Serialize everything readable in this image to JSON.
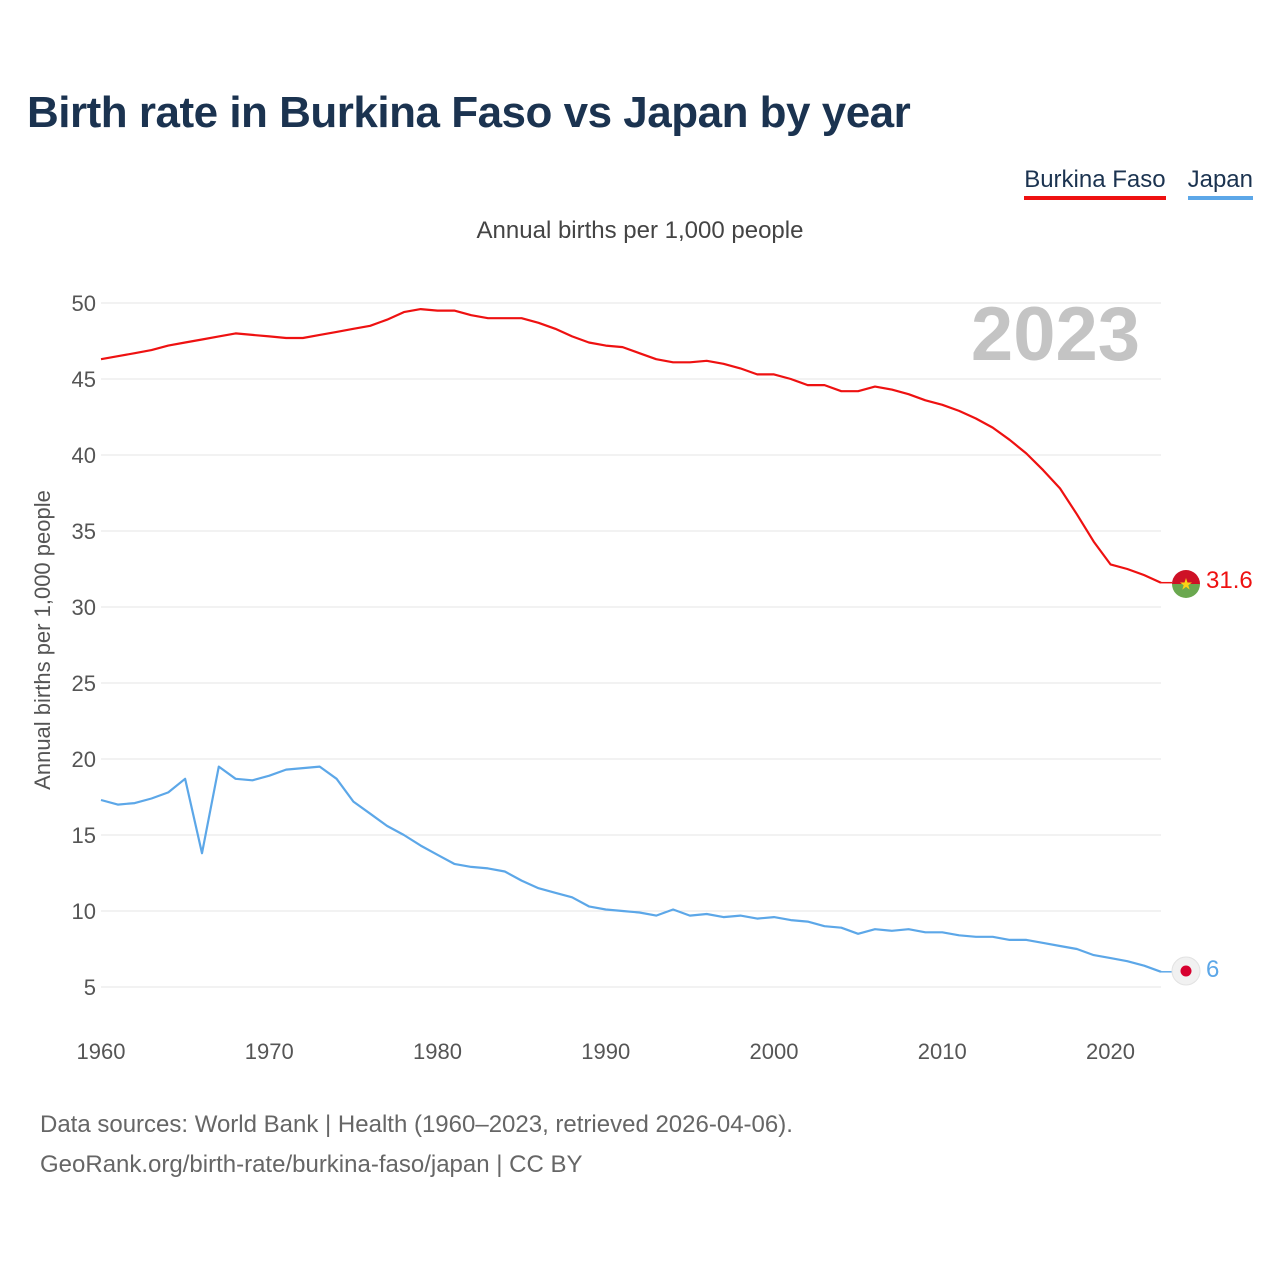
{
  "title": "Birth rate in Burkina Faso vs Japan by year",
  "legend": [
    {
      "name": "Burkina Faso",
      "color": "#ee1111"
    },
    {
      "name": "Japan",
      "color": "#5ca7e8"
    }
  ],
  "subtitle": "Annual births per 1,000 people",
  "year_watermark": "2023",
  "footer": {
    "line1": "Data sources: World Bank | Health (1960–2023, retrieved 2026-04-06).",
    "line2": "GeoRank.org/birth-rate/burkina-faso/japan | CC BY"
  },
  "chart_data": {
    "type": "line",
    "title": "Birth rate in Burkina Faso vs Japan by year",
    "xlabel": "",
    "ylabel": "Annual births per 1,000 people",
    "xlim": [
      1960,
      2023
    ],
    "ylim": [
      3,
      52
    ],
    "xticks": [
      1960,
      1970,
      1980,
      1990,
      2000,
      2010,
      2020
    ],
    "yticks": [
      5,
      10,
      15,
      20,
      25,
      30,
      35,
      40,
      45,
      50
    ],
    "grid": true,
    "legend_position": "top-right",
    "x": [
      1960,
      1961,
      1962,
      1963,
      1964,
      1965,
      1966,
      1967,
      1968,
      1969,
      1970,
      1971,
      1972,
      1973,
      1974,
      1975,
      1976,
      1977,
      1978,
      1979,
      1980,
      1981,
      1982,
      1983,
      1984,
      1985,
      1986,
      1987,
      1988,
      1989,
      1990,
      1991,
      1992,
      1993,
      1994,
      1995,
      1996,
      1997,
      1998,
      1999,
      2000,
      2001,
      2002,
      2003,
      2004,
      2005,
      2006,
      2007,
      2008,
      2009,
      2010,
      2011,
      2012,
      2013,
      2014,
      2015,
      2016,
      2017,
      2018,
      2019,
      2020,
      2021,
      2022,
      2023
    ],
    "series": [
      {
        "name": "Burkina Faso",
        "color": "#ee1111",
        "end_label": "31.6",
        "values": [
          46.3,
          46.5,
          46.7,
          46.9,
          47.2,
          47.4,
          47.6,
          47.8,
          48.0,
          47.9,
          47.8,
          47.7,
          47.7,
          47.9,
          48.1,
          48.3,
          48.5,
          48.9,
          49.4,
          49.6,
          49.5,
          49.5,
          49.2,
          49.0,
          49.0,
          49.0,
          48.7,
          48.3,
          47.8,
          47.4,
          47.2,
          47.1,
          46.7,
          46.3,
          46.1,
          46.1,
          46.2,
          46.0,
          45.7,
          45.3,
          45.3,
          45.0,
          44.6,
          44.6,
          44.2,
          44.2,
          44.5,
          44.3,
          44.0,
          43.6,
          43.3,
          42.9,
          42.4,
          41.8,
          41.0,
          40.1,
          39.0,
          37.8,
          36.1,
          34.3,
          32.8,
          32.5,
          32.1,
          31.6
        ]
      },
      {
        "name": "Japan",
        "color": "#5ca7e8",
        "end_label": "6",
        "values": [
          17.3,
          17.0,
          17.1,
          17.4,
          17.8,
          18.7,
          13.8,
          19.5,
          18.7,
          18.6,
          18.9,
          19.3,
          19.4,
          19.5,
          18.7,
          17.2,
          16.4,
          15.6,
          15.0,
          14.3,
          13.7,
          13.1,
          12.9,
          12.8,
          12.6,
          12.0,
          11.5,
          11.2,
          10.9,
          10.3,
          10.1,
          10.0,
          9.9,
          9.7,
          10.1,
          9.7,
          9.8,
          9.6,
          9.7,
          9.5,
          9.6,
          9.4,
          9.3,
          9.0,
          8.9,
          8.5,
          8.8,
          8.7,
          8.8,
          8.6,
          8.6,
          8.4,
          8.3,
          8.3,
          8.1,
          8.1,
          7.9,
          7.7,
          7.5,
          7.1,
          6.9,
          6.7,
          6.4,
          6.0
        ]
      }
    ]
  }
}
